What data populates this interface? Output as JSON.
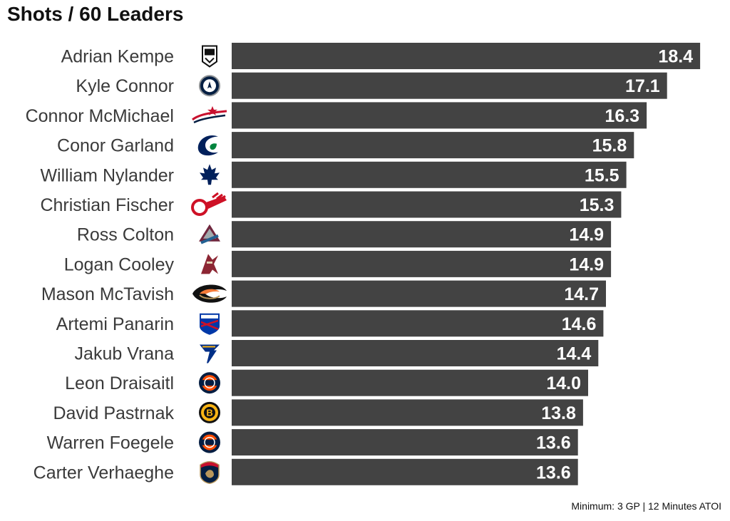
{
  "header": {
    "title": "Shots / 60 Leaders"
  },
  "footer": {
    "note": "Minimum: 3 GP | 12 Minutes ATOI"
  },
  "colors": {
    "bar": "#434343",
    "label_text": "#3a3a3a",
    "value_text": "#ffffff"
  },
  "chart_data": {
    "type": "bar",
    "orientation": "horizontal",
    "title": "Shots / 60 Leaders",
    "categories": [
      "Adrian Kempe",
      "Kyle Connor",
      "Connor McMichael",
      "Conor Garland",
      "William Nylander",
      "Christian Fischer",
      "Ross Colton",
      "Logan Cooley",
      "Mason McTavish",
      "Artemi Panarin",
      "Jakub Vrana",
      "Leon Draisaitl",
      "David Pastrnak",
      "Warren Foegele",
      "Carter Verhaeghe"
    ],
    "values": [
      18.4,
      17.1,
      16.3,
      15.8,
      15.5,
      15.3,
      14.9,
      14.9,
      14.7,
      14.6,
      14.4,
      14.0,
      13.8,
      13.6,
      13.6
    ],
    "value_labels": [
      "18.4",
      "17.1",
      "16.3",
      "15.8",
      "15.5",
      "15.3",
      "14.9",
      "14.9",
      "14.7",
      "14.6",
      "14.4",
      "14.0",
      "13.8",
      "13.6",
      "13.6"
    ],
    "team_logos": [
      "LA",
      "WPG",
      "WSH",
      "VAN",
      "TOR",
      "DET",
      "COL",
      "ARI",
      "ANA",
      "NYR",
      "STL",
      "EDM",
      "BOS",
      "EDM",
      "FLA"
    ],
    "xlim": [
      0,
      18.9
    ],
    "grid": false,
    "legend": "none"
  }
}
